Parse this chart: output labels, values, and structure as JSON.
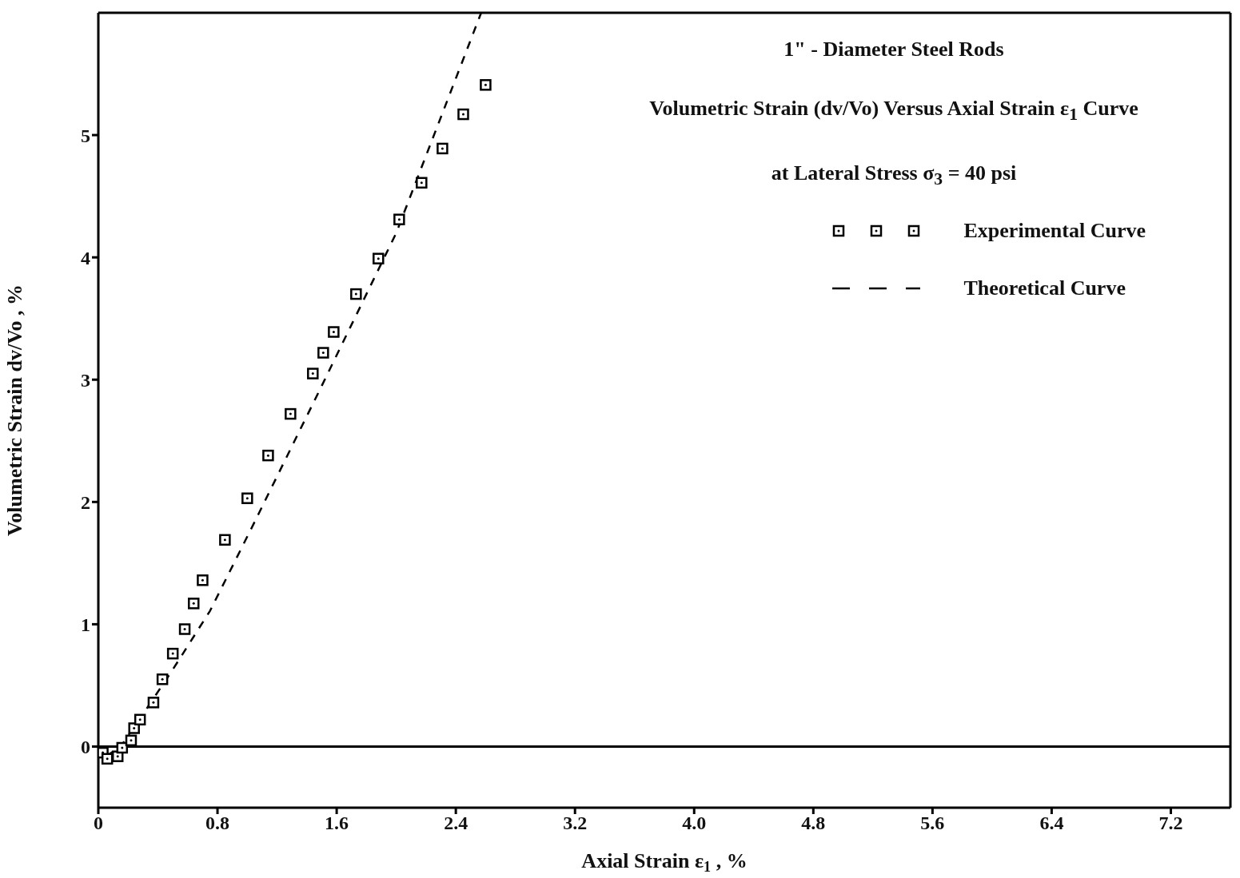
{
  "chart_data": {
    "type": "scatter",
    "title": "1\" - Diameter Steel Rods",
    "subtitle": "Volumetric Strain (dv/Vo) Versus Axial Strain ε$_{1}$ Curve",
    "annotations": [
      "at Lateral Stress σ$_{3}$ = 40 psi"
    ],
    "xlabel": "Axial Strain ε$_{1}$ , %",
    "ylabel": "Volumetric Strain dv/Vo , %",
    "xlim": [
      0,
      7.6
    ],
    "ylim": [
      -0.5,
      6
    ],
    "xticks": [
      0,
      0.8,
      1.6,
      2.4,
      3.2,
      {
        "value": 4,
        "label": "4.0"
      },
      4.8,
      5.6,
      6.4,
      7.2
    ],
    "yticks": [
      0,
      1,
      2,
      3,
      4,
      5
    ],
    "grid": false,
    "legend": "top right",
    "ref_lines": [
      {
        "axis": "y",
        "value": 0,
        "color": "#000000",
        "line_style": "solid"
      }
    ],
    "series": [
      {
        "name": "Experimental Curve",
        "marker": "square",
        "color": "#000000",
        "x": [
          0.03,
          0.06,
          0.13,
          0.16,
          0.22,
          0.24,
          0.28,
          0.37,
          0.43,
          0.5,
          0.58,
          0.64,
          0.7,
          0.85,
          1.0,
          1.14,
          1.29,
          1.44,
          1.51,
          1.58,
          1.73,
          1.88,
          2.02,
          2.17,
          2.31,
          2.45,
          2.6
        ],
        "values": [
          -0.05,
          -0.1,
          -0.08,
          -0.01,
          0.05,
          0.15,
          0.22,
          0.36,
          0.55,
          0.76,
          0.96,
          1.17,
          1.36,
          1.69,
          2.03,
          2.38,
          2.72,
          3.05,
          3.22,
          3.39,
          3.7,
          3.99,
          4.31,
          4.61,
          4.89,
          5.17,
          5.41
        ]
      },
      {
        "name": "Theoretical Curve",
        "type": "line",
        "marker": "none",
        "line_style": "dashed",
        "color": "#000000",
        "x": [
          0.05,
          0.15,
          0.33,
          0.5,
          0.75,
          1.03,
          1.5,
          2.0,
          2.57
        ],
        "values": [
          -0.08,
          0.0,
          0.32,
          0.63,
          1.11,
          1.79,
          2.95,
          4.2,
          6.0
        ]
      }
    ]
  }
}
